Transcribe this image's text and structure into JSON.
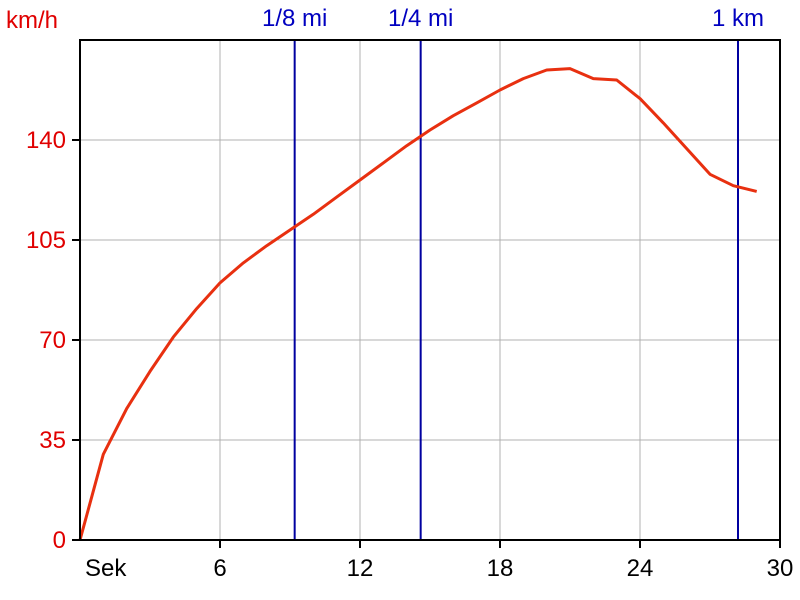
{
  "chart_data": {
    "type": "line",
    "ylabel": "km/h",
    "xlabel": "Sek",
    "xlim": [
      0,
      30
    ],
    "ylim": [
      0,
      175
    ],
    "x_ticks": [
      6,
      12,
      18,
      24,
      30
    ],
    "y_ticks": [
      0,
      35,
      70,
      105,
      140
    ],
    "grid": true,
    "series": [
      {
        "x": [
          0,
          1,
          2,
          3,
          4,
          5,
          6,
          7,
          8,
          9,
          10,
          11,
          12,
          13,
          14,
          15,
          16,
          17,
          18,
          19,
          20,
          21,
          22,
          23,
          24,
          25,
          26,
          27,
          28,
          29
        ],
        "y": [
          0,
          30,
          46,
          59,
          71,
          81,
          90,
          97,
          103,
          108.5,
          114,
          120,
          126,
          132,
          138,
          143.5,
          148.5,
          153,
          157.5,
          161.5,
          164.5,
          165,
          161.5,
          161,
          154.5,
          146,
          137,
          128,
          124,
          122
        ]
      }
    ],
    "markers": [
      {
        "label": "1/8 mi",
        "x": 9.2
      },
      {
        "label": "1/4 mi",
        "x": 14.6
      },
      {
        "label": "1 km",
        "x": 28.2
      }
    ]
  },
  "colors": {
    "line": "#e83010",
    "marker": "#0000a0",
    "grid": "#b0b0b0",
    "axis": "#000000",
    "ytick": "#e00000",
    "marker_text": "#0000c0"
  }
}
